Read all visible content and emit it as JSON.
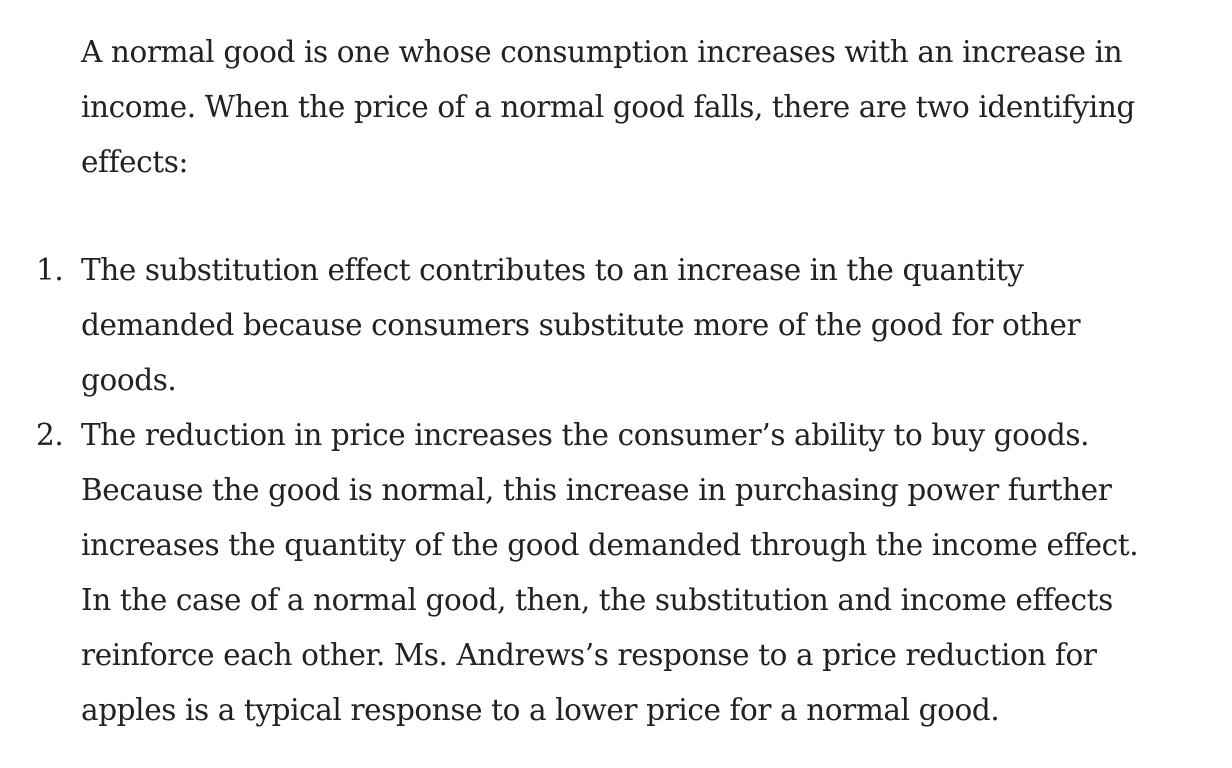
{
  "intro": {
    "text": "A normal good is one whose consumption increases with an increase in income. When the price of a normal good falls, there are two identifying effects:"
  },
  "effects": [
    {
      "number": "1.",
      "text": "The substitution effect contributes to an increase in the quantity demanded because consumers substitute more of the good for other goods."
    },
    {
      "number": "2.",
      "text": "The reduction in price increases the consumer’s ability to buy goods. Because the good is normal, this increase in purchasing power further increases the quantity of the good demanded through the income effect. In the case of a normal good, then, the substitution and income effects reinforce each other. Ms. Andrews’s response to a price reduction for apples is a typical response to a lower price for a normal good."
    }
  ]
}
